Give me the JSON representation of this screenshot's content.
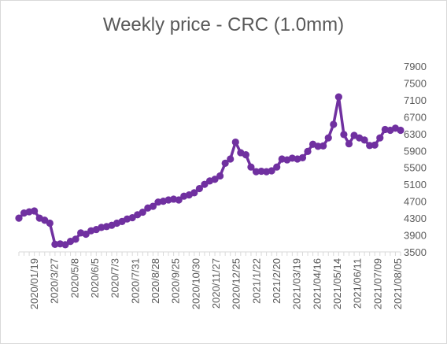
{
  "chart_data": {
    "type": "line",
    "title": "Weekly price - CRC (1.0mm)",
    "xlabel": "",
    "ylabel": "",
    "ylim": [
      3500,
      7900
    ],
    "y_ticks": [
      "3500",
      "3900",
      "4300",
      "4700",
      "5100",
      "5500",
      "5900",
      "6300",
      "6700",
      "7100",
      "7500",
      "7900"
    ],
    "x_tick_labels": [
      "2020/01/19",
      "2020/3/27",
      "2020/5/8",
      "2020/6/5",
      "2020/7/3",
      "2020/7/31",
      "2020/8/28",
      "2020/9/25",
      "2020/10/30",
      "2020/11/27",
      "2020/12/25",
      "2021/1/22",
      "2021/2/20",
      "2021/03/19",
      "2021/04/16",
      "2021/05/14",
      "2021/06/11",
      "2021/07/09",
      "2021/08/05"
    ],
    "grid": false,
    "legend": "none",
    "line_color": "#7030a0",
    "series": [
      {
        "values": [
          4300,
          4420,
          4450,
          4470,
          4300,
          4250,
          4180,
          3680,
          3690,
          3670,
          3750,
          3800,
          3950,
          3920,
          4000,
          4030,
          4080,
          4100,
          4130,
          4180,
          4220,
          4280,
          4310,
          4380,
          4440,
          4540,
          4580,
          4680,
          4700,
          4730,
          4750,
          4730,
          4820,
          4850,
          4900,
          5000,
          5100,
          5180,
          5220,
          5300,
          5600,
          5700,
          6100,
          5850,
          5800,
          5510,
          5400,
          5410,
          5400,
          5420,
          5510,
          5700,
          5680,
          5720,
          5700,
          5730,
          5880,
          6050,
          6000,
          6010,
          6200,
          6520,
          7170,
          6280,
          6060,
          6260,
          6200,
          6150,
          6020,
          6030,
          6200,
          6400,
          6380,
          6430,
          6380
        ]
      }
    ]
  }
}
